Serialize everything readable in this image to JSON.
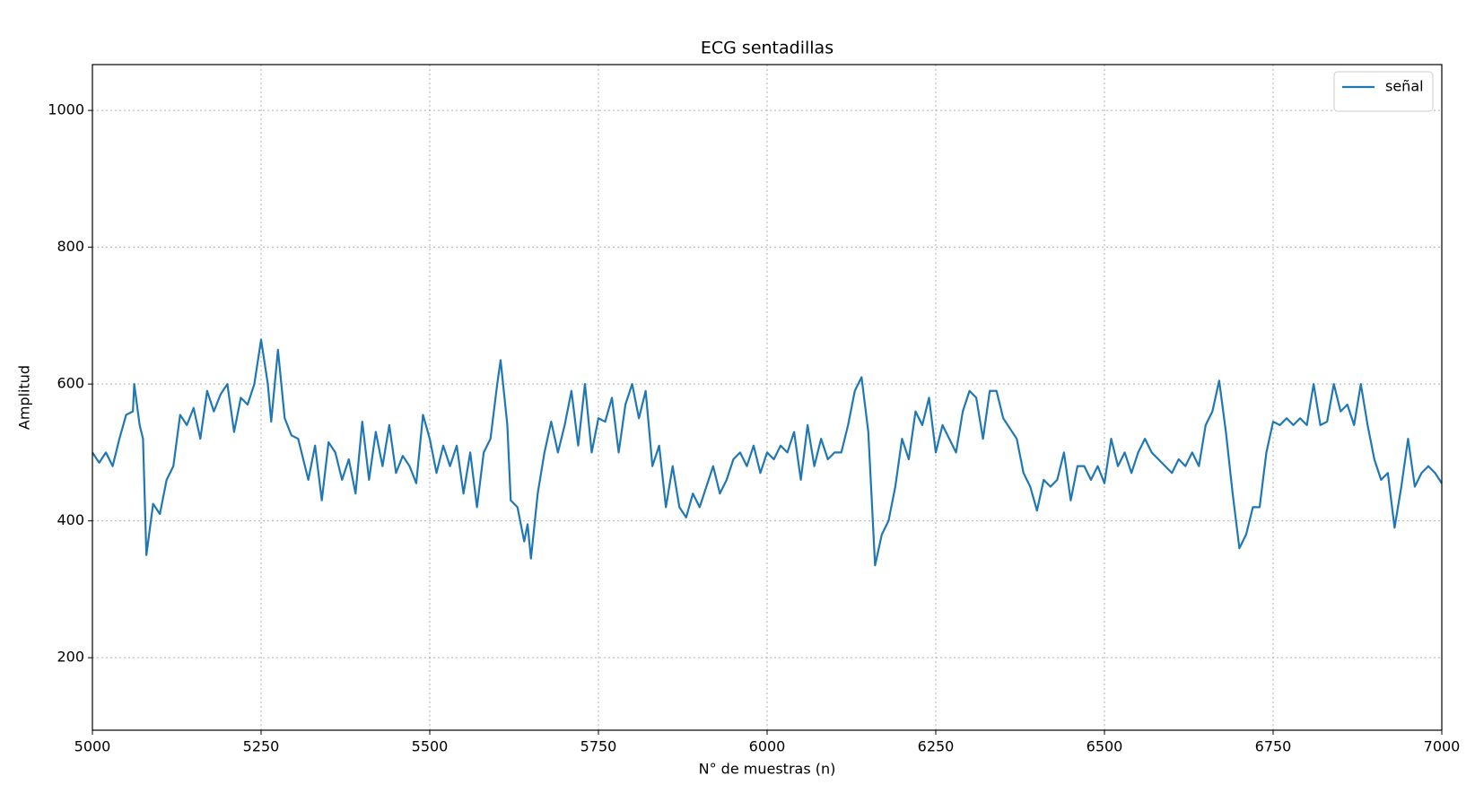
{
  "chart_data": {
    "type": "line",
    "title": "ECG sentadillas",
    "xlabel": "N° de muestras (n)",
    "ylabel": "Amplitud",
    "x": [
      5000,
      5010,
      5020,
      5030,
      5040,
      5050,
      5060,
      5062,
      5070,
      5075,
      5080,
      5090,
      5100,
      5110,
      5120,
      5130,
      5140,
      5150,
      5160,
      5170,
      5180,
      5190,
      5200,
      5210,
      5220,
      5230,
      5240,
      5250,
      5260,
      5265,
      5275,
      5285,
      5295,
      5305,
      5320,
      5330,
      5340,
      5350,
      5360,
      5370,
      5380,
      5390,
      5400,
      5410,
      5420,
      5430,
      5440,
      5450,
      5460,
      5470,
      5480,
      5490,
      5500,
      5510,
      5520,
      5530,
      5540,
      5550,
      5560,
      5570,
      5580,
      5590,
      5600,
      5605,
      5615,
      5620,
      5630,
      5640,
      5645,
      5650,
      5660,
      5670,
      5680,
      5690,
      5700,
      5710,
      5720,
      5730,
      5740,
      5750,
      5760,
      5770,
      5780,
      5790,
      5800,
      5810,
      5820,
      5830,
      5840,
      5850,
      5860,
      5870,
      5880,
      5890,
      5900,
      5910,
      5920,
      5930,
      5940,
      5950,
      5960,
      5970,
      5980,
      5990,
      6000,
      6010,
      6020,
      6030,
      6040,
      6050,
      6060,
      6070,
      6080,
      6090,
      6100,
      6110,
      6120,
      6130,
      6140,
      6150,
      6160,
      6170,
      6180,
      6190,
      6200,
      6210,
      6220,
      6230,
      6240,
      6250,
      6260,
      6270,
      6280,
      6290,
      6300,
      6310,
      6320,
      6330,
      6340,
      6350,
      6360,
      6370,
      6380,
      6390,
      6400,
      6410,
      6420,
      6430,
      6440,
      6450,
      6460,
      6470,
      6480,
      6490,
      6500,
      6510,
      6520,
      6530,
      6540,
      6550,
      6560,
      6570,
      6580,
      6590,
      6600,
      6610,
      6620,
      6630,
      6640,
      6650,
      6660,
      6670,
      6680,
      6690,
      6700,
      6710,
      6720,
      6730,
      6740,
      6750,
      6760,
      6770,
      6780,
      6790,
      6800,
      6810,
      6820,
      6830,
      6840,
      6850,
      6860,
      6870,
      6880,
      6890,
      6900,
      6910,
      6920,
      6930,
      6940,
      6950,
      6960,
      6970,
      6980,
      6990,
      7000
    ],
    "series": [
      {
        "name": "señal",
        "color": "#1f77b4",
        "values": [
          500,
          485,
          500,
          480,
          520,
          555,
          560,
          600,
          540,
          520,
          350,
          425,
          410,
          460,
          480,
          555,
          540,
          565,
          520,
          590,
          560,
          585,
          600,
          530,
          580,
          570,
          600,
          665,
          600,
          545,
          650,
          550,
          525,
          520,
          460,
          510,
          430,
          515,
          500,
          460,
          490,
          440,
          545,
          460,
          530,
          480,
          540,
          470,
          495,
          480,
          455,
          555,
          520,
          470,
          510,
          480,
          510,
          440,
          500,
          420,
          500,
          520,
          600,
          635,
          540,
          430,
          420,
          370,
          395,
          345,
          440,
          500,
          545,
          500,
          540,
          590,
          510,
          600,
          500,
          550,
          545,
          580,
          500,
          570,
          600,
          550,
          590,
          480,
          510,
          420,
          480,
          420,
          405,
          440,
          420,
          450,
          480,
          440,
          460,
          490,
          500,
          480,
          510,
          470,
          500,
          490,
          510,
          500,
          530,
          460,
          540,
          480,
          520,
          490,
          500,
          500,
          540,
          590,
          610,
          530,
          335,
          380,
          400,
          450,
          520,
          490,
          560,
          540,
          580,
          500,
          540,
          520,
          500,
          560,
          590,
          580,
          520,
          590,
          590,
          550,
          535,
          520,
          470,
          450,
          415,
          460,
          450,
          460,
          500,
          430,
          480,
          480,
          460,
          480,
          455,
          520,
          480,
          500,
          470,
          500,
          520,
          500,
          490,
          480,
          470,
          490,
          480,
          500,
          480,
          540,
          560,
          605,
          530,
          440,
          360,
          380,
          420,
          420,
          500,
          545,
          540,
          550,
          540,
          550,
          540,
          600,
          540,
          545,
          600,
          560,
          570,
          540,
          600,
          540,
          490,
          460,
          470,
          390,
          450,
          520,
          450,
          470,
          480,
          470,
          455
        ]
      }
    ],
    "xlim": [
      5000,
      7000
    ],
    "ylim": [
      94,
      1067
    ],
    "xticks": [
      5000,
      5250,
      5500,
      5750,
      6000,
      6250,
      6500,
      6750,
      7000
    ],
    "yticks": [
      200,
      400,
      600,
      800,
      1000
    ],
    "grid": true,
    "legend": "upper right"
  }
}
